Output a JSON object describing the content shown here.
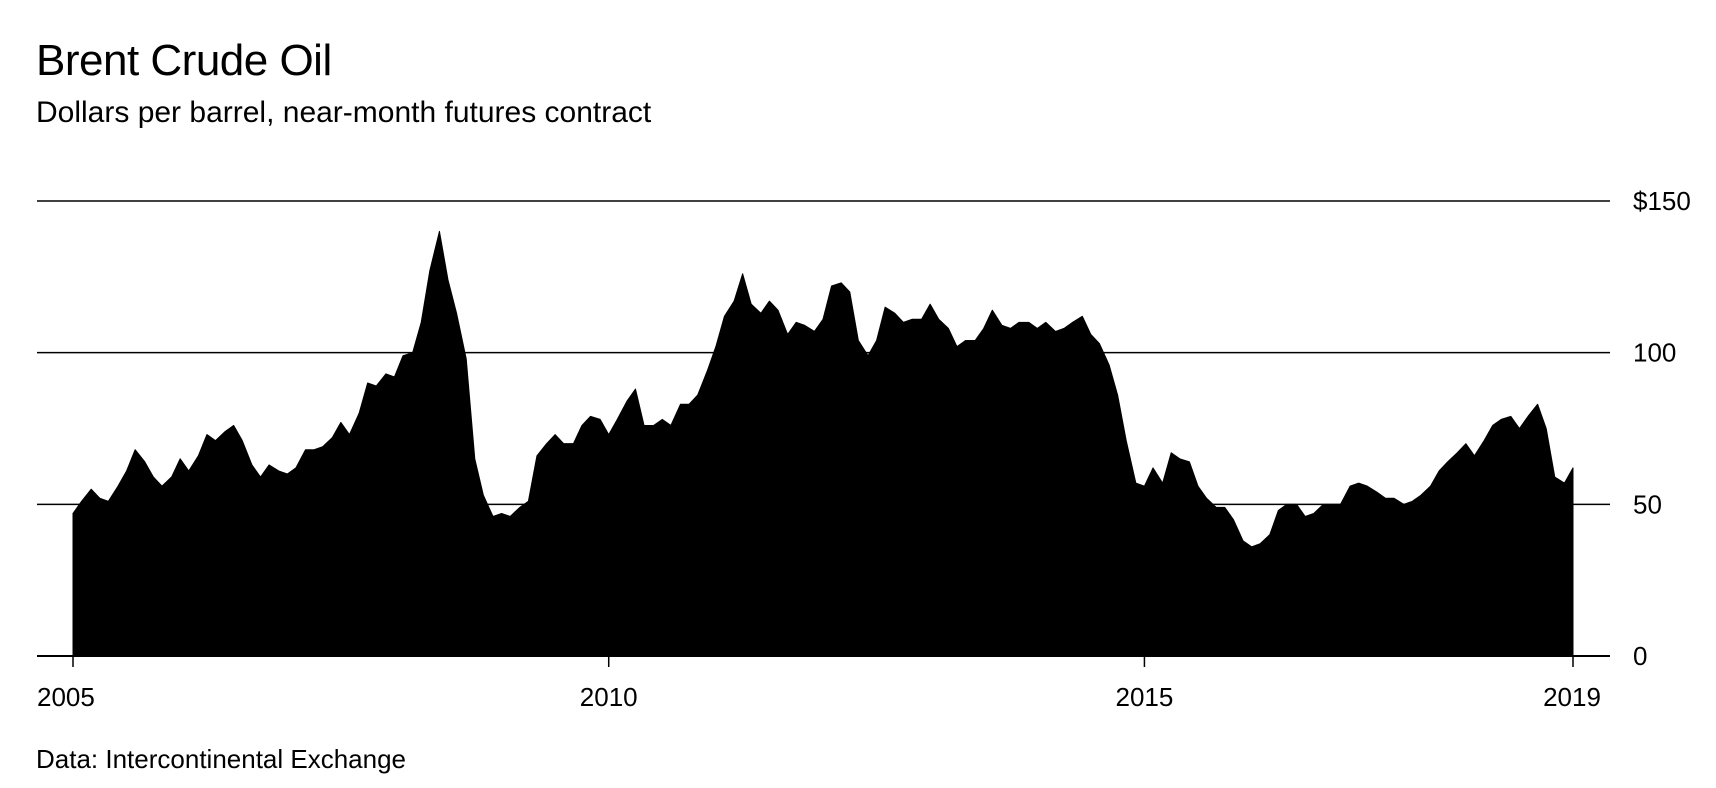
{
  "title": "Brent Crude Oil",
  "subtitle": "Dollars per barrel, near-month futures contract",
  "source": "Data: Intercontinental Exchange",
  "colors": {
    "area": "#000000",
    "grid": "#000000",
    "background": "#ffffff"
  },
  "chart_data": {
    "type": "area",
    "title": "Brent Crude Oil",
    "subtitle": "Dollars per barrel, near-month futures contract",
    "xlabel": "",
    "ylabel": "Dollars per barrel",
    "xlim": [
      2005.0,
      2019.0
    ],
    "ylim": [
      0,
      150
    ],
    "y_ticks": [
      0,
      50,
      100,
      150
    ],
    "y_tick_labels": [
      "0",
      "50",
      "100",
      "$150"
    ],
    "x_ticks": [
      2005,
      2010,
      2015,
      2019
    ],
    "x_tick_labels": [
      "2005",
      "2010",
      "2015",
      "2019"
    ],
    "grid": true,
    "series": [
      {
        "name": "Brent Crude Oil",
        "x": [
          2005.0,
          2005.08,
          2005.17,
          2005.25,
          2005.33,
          2005.42,
          2005.5,
          2005.58,
          2005.67,
          2005.75,
          2005.83,
          2005.92,
          2006.0,
          2006.08,
          2006.17,
          2006.25,
          2006.33,
          2006.42,
          2006.5,
          2006.58,
          2006.67,
          2006.75,
          2006.83,
          2006.92,
          2007.0,
          2007.08,
          2007.17,
          2007.25,
          2007.33,
          2007.42,
          2007.5,
          2007.58,
          2007.67,
          2007.75,
          2007.83,
          2007.92,
          2008.0,
          2008.08,
          2008.17,
          2008.25,
          2008.33,
          2008.42,
          2008.5,
          2008.58,
          2008.67,
          2008.75,
          2008.83,
          2008.92,
          2009.0,
          2009.08,
          2009.17,
          2009.25,
          2009.33,
          2009.42,
          2009.5,
          2009.58,
          2009.67,
          2009.75,
          2009.83,
          2009.92,
          2010.0,
          2010.08,
          2010.17,
          2010.25,
          2010.33,
          2010.42,
          2010.5,
          2010.58,
          2010.67,
          2010.75,
          2010.83,
          2010.92,
          2011.0,
          2011.08,
          2011.17,
          2011.25,
          2011.33,
          2011.42,
          2011.5,
          2011.58,
          2011.67,
          2011.75,
          2011.83,
          2011.92,
          2012.0,
          2012.08,
          2012.17,
          2012.25,
          2012.33,
          2012.42,
          2012.5,
          2012.58,
          2012.67,
          2012.75,
          2012.83,
          2012.92,
          2013.0,
          2013.08,
          2013.17,
          2013.25,
          2013.33,
          2013.42,
          2013.5,
          2013.58,
          2013.67,
          2013.75,
          2013.83,
          2013.92,
          2014.0,
          2014.08,
          2014.17,
          2014.25,
          2014.33,
          2014.42,
          2014.5,
          2014.58,
          2014.67,
          2014.75,
          2014.83,
          2014.92,
          2015.0,
          2015.08,
          2015.17,
          2015.25,
          2015.33,
          2015.42,
          2015.5,
          2015.58,
          2015.67,
          2015.75,
          2015.83,
          2015.92,
          2016.0,
          2016.08,
          2016.17,
          2016.25,
          2016.33,
          2016.42,
          2016.5,
          2016.58,
          2016.67,
          2016.75,
          2016.83,
          2016.92,
          2017.0,
          2017.08,
          2017.17,
          2017.25,
          2017.33,
          2017.42,
          2017.5,
          2017.58,
          2017.67,
          2017.75,
          2017.83,
          2017.92,
          2018.0,
          2018.08,
          2018.17,
          2018.25,
          2018.33,
          2018.42,
          2018.5,
          2018.58,
          2018.67,
          2018.75,
          2018.83,
          2018.92,
          2019.0
        ],
        "values": [
          47,
          51,
          55,
          52,
          51,
          56,
          61,
          68,
          64,
          59,
          56,
          59,
          65,
          61,
          66,
          73,
          71,
          74,
          76,
          71,
          63,
          59,
          63,
          61,
          60,
          62,
          68,
          68,
          69,
          72,
          77,
          73,
          80,
          90,
          89,
          93,
          92,
          99,
          100,
          110,
          127,
          140,
          124,
          113,
          98,
          65,
          53,
          46,
          47,
          46,
          49,
          51,
          66,
          70,
          73,
          70,
          70,
          76,
          79,
          78,
          73,
          78,
          84,
          88,
          76,
          76,
          78,
          76,
          83,
          83,
          86,
          94,
          102,
          112,
          117,
          126,
          116,
          113,
          117,
          114,
          106,
          110,
          109,
          107,
          111,
          122,
          123,
          120,
          104,
          99,
          104,
          115,
          113,
          110,
          111,
          111,
          116,
          111,
          108,
          102,
          104,
          104,
          108,
          114,
          109,
          108,
          110,
          110,
          108,
          110,
          107,
          108,
          110,
          112,
          106,
          103,
          96,
          86,
          71,
          57,
          56,
          62,
          57,
          67,
          65,
          64,
          56,
          52,
          49,
          49,
          45,
          38,
          36,
          37,
          40,
          48,
          50,
          50,
          46,
          47,
          50,
          50,
          50,
          56,
          57,
          56,
          54,
          52,
          52,
          50,
          51,
          53,
          56,
          61,
          64,
          67,
          70,
          66,
          71,
          76,
          78,
          79,
          75,
          79,
          83,
          75,
          59,
          57,
          62
        ]
      }
    ]
  }
}
